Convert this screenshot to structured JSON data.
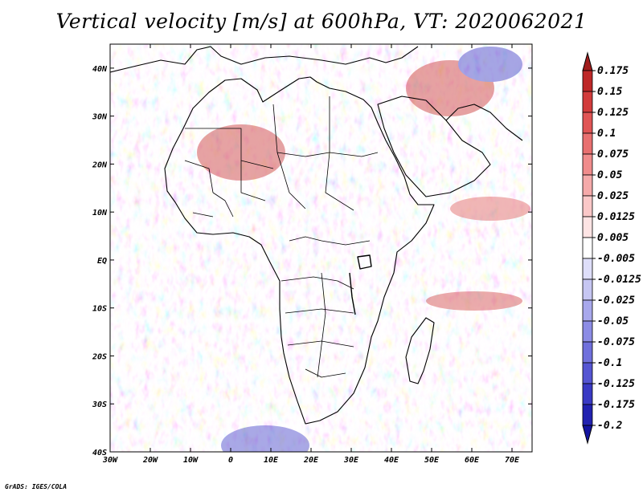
{
  "title": "Vertical velocity [m/s] at 600hPa, VT: 2020062021",
  "footer": "GrADS: IGES/COLA",
  "map": {
    "lat_labels": [
      {
        "lat": 40,
        "label": "40N"
      },
      {
        "lat": 30,
        "label": "30N"
      },
      {
        "lat": 20,
        "label": "20N"
      },
      {
        "lat": 10,
        "label": "10N"
      },
      {
        "lat": 0,
        "label": "EQ"
      },
      {
        "lat": -10,
        "label": "10S"
      },
      {
        "lat": -20,
        "label": "20S"
      },
      {
        "lat": -30,
        "label": "30S"
      },
      {
        "lat": -40,
        "label": "40S"
      }
    ],
    "lon_labels": [
      {
        "lon": -30,
        "label": "30W"
      },
      {
        "lon": -20,
        "label": "20W"
      },
      {
        "lon": -10,
        "label": "10W"
      },
      {
        "lon": 0,
        "label": "0"
      },
      {
        "lon": 10,
        "label": "10E"
      },
      {
        "lon": 20,
        "label": "20E"
      },
      {
        "lon": 30,
        "label": "30E"
      },
      {
        "lon": 40,
        "label": "40E"
      },
      {
        "lon": 50,
        "label": "50E"
      },
      {
        "lon": 60,
        "label": "60E"
      },
      {
        "lon": 70,
        "label": "70E"
      }
    ],
    "lon_range": [
      -30,
      75
    ],
    "lat_range": [
      -40,
      45
    ]
  },
  "colorbar": {
    "labels": [
      "0.175",
      "0.15",
      "0.125",
      "0.1",
      "0.075",
      "0.05",
      "0.025",
      "0.0125",
      "0.005",
      "-0.005",
      "-0.0125",
      "-0.025",
      "-0.05",
      "-0.075",
      "-0.1",
      "-0.125",
      "-0.175",
      "-0.2"
    ],
    "colors": [
      "#a01c1c",
      "#be2828",
      "#d23c3c",
      "#e05555",
      "#e87070",
      "#f08c8c",
      "#f5aaaa",
      "#fac8c8",
      "#fde4e4",
      "#ffffff",
      "#dedef9",
      "#c6c6f2",
      "#a8a8ec",
      "#8c8ce5",
      "#7070dc",
      "#5555d2",
      "#3a3ac4",
      "#2222b0",
      "#1414a0"
    ]
  }
}
